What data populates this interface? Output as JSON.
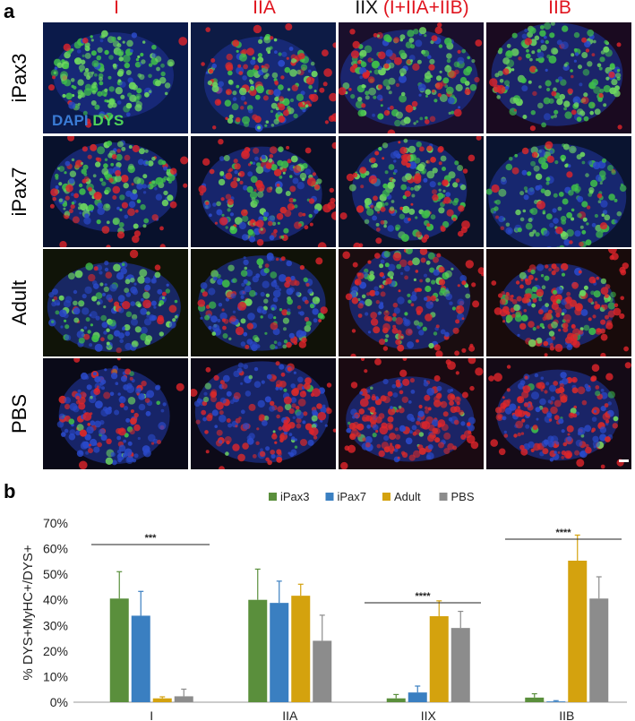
{
  "panels": {
    "a": "a",
    "b": "b"
  },
  "columns": [
    {
      "parts": [
        {
          "text": "I",
          "color": "#e0141e"
        }
      ]
    },
    {
      "parts": [
        {
          "text": "IIA",
          "color": "#e0141e"
        }
      ]
    },
    {
      "parts": [
        {
          "text": "IIX ",
          "color": "#111111"
        },
        {
          "text": "(I+IIA+IIB)",
          "color": "#e0141e"
        }
      ]
    },
    {
      "parts": [
        {
          "text": "IIB",
          "color": "#e0141e"
        }
      ]
    }
  ],
  "rows": [
    "iPax3",
    "iPax7",
    "Adult",
    "PBS"
  ],
  "stain_label": {
    "dapi": "DAPI",
    "dys": "DYS",
    "dapi_color": "#3a7bd5",
    "dys_color": "#4fd35a"
  },
  "chart_data": {
    "type": "bar",
    "categories": [
      "I",
      "IIA",
      "IIX",
      "IIB"
    ],
    "series": [
      {
        "name": "iPax3",
        "color": "#5a8f3c",
        "values": [
          40.5,
          40.0,
          1.5,
          1.8
        ],
        "errors": [
          10.5,
          12.0,
          1.5,
          1.5
        ]
      },
      {
        "name": "iPax7",
        "color": "#3a7fc1",
        "values": [
          33.8,
          38.8,
          3.8,
          0.3
        ],
        "errors": [
          9.5,
          8.5,
          2.5,
          0.3
        ]
      },
      {
        "name": "Adult",
        "color": "#d4a20e",
        "values": [
          1.5,
          41.6,
          33.6,
          55.3
        ],
        "errors": [
          0.6,
          4.5,
          6.0,
          10.0
        ]
      },
      {
        "name": "PBS",
        "color": "#8c8c8c",
        "values": [
          2.3,
          24.0,
          29.0,
          40.5
        ],
        "errors": [
          2.8,
          10.0,
          6.5,
          8.5
        ]
      }
    ],
    "ylabel": "% DYS+MyHC+/DYS+",
    "ylim": [
      0,
      70
    ],
    "yticks": [
      "0%",
      "10%",
      "20%",
      "30%",
      "40%",
      "50%",
      "60%",
      "70%"
    ],
    "legend_position": "top",
    "significance": [
      {
        "category": "I",
        "label": "***"
      },
      {
        "category": "IIX",
        "label": "****"
      },
      {
        "category": "IIB",
        "label": "****"
      }
    ]
  }
}
